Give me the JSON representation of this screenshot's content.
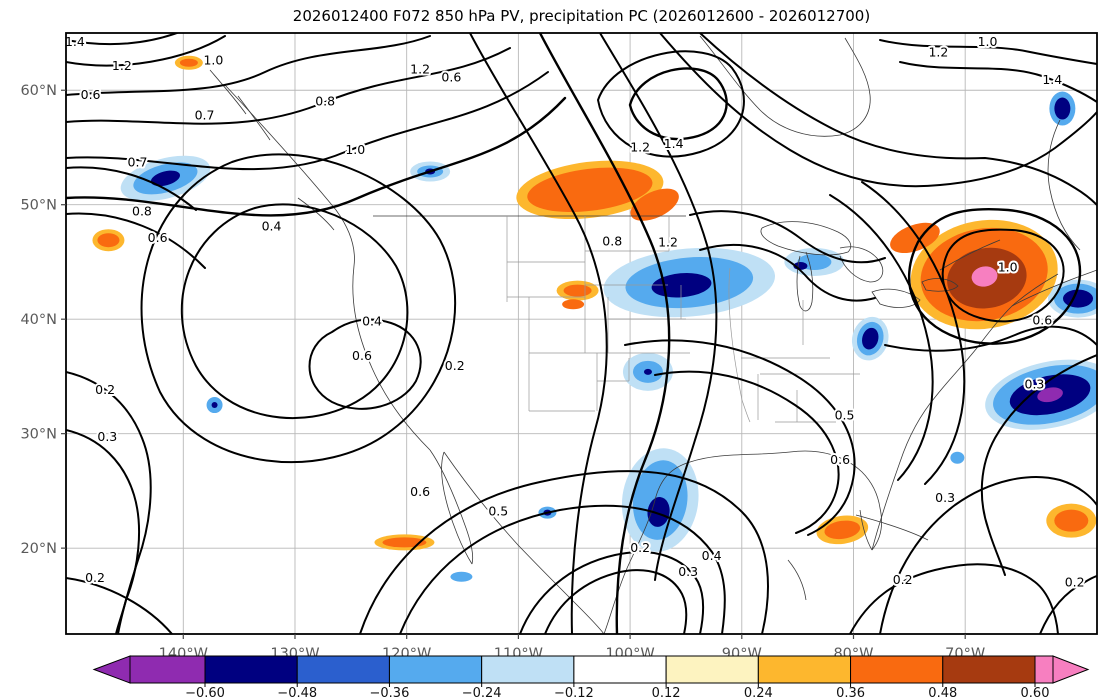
{
  "title": "2026012400 F072 850 hPa PV, precipitation PC (2026012600 - 2026012700)",
  "chart_data": {
    "type": "contour_map_with_shading",
    "title": "2026012400 F072 850 hPa PV, precipitation PC (2026012600 - 2026012700)",
    "init_time": "2026012400",
    "forecast_hour": "F072",
    "contour_variable": "850 hPa PV",
    "shaded_variable": "precipitation PC",
    "valid_period": "2026012600 - 2026012700",
    "grid": true,
    "map_extent": {
      "lon_west": 150.5,
      "lon_east": 58.2,
      "lat_south": 12.5,
      "lat_north": 65.0
    },
    "x_axis": {
      "ticks": [
        {
          "deg_w": 140,
          "label": "140°W"
        },
        {
          "deg_w": 130,
          "label": "130°W"
        },
        {
          "deg_w": 120,
          "label": "120°W"
        },
        {
          "deg_w": 110,
          "label": "110°W"
        },
        {
          "deg_w": 100,
          "label": "100°W"
        },
        {
          "deg_w": 90,
          "label": "90°W"
        },
        {
          "deg_w": 80,
          "label": "80°W"
        },
        {
          "deg_w": 70,
          "label": "70°W"
        }
      ]
    },
    "y_axis": {
      "ticks": [
        {
          "deg_n": 20,
          "label": "20°N"
        },
        {
          "deg_n": 30,
          "label": "30°N"
        },
        {
          "deg_n": 40,
          "label": "40°N"
        },
        {
          "deg_n": 50,
          "label": "50°N"
        },
        {
          "deg_n": 60,
          "label": "60°N"
        }
      ]
    },
    "contours": {
      "line_color": "#000000",
      "labeled_values": [
        0.2,
        0.3,
        0.4,
        0.5,
        0.6,
        0.7,
        0.8,
        1.0,
        1.2,
        1.4
      ],
      "labels": [
        {
          "t": "1.4",
          "lon": 149.7,
          "lat": 64.2
        },
        {
          "t": "1.2",
          "lon": 145.5,
          "lat": 62.1
        },
        {
          "t": "1.0",
          "lon": 137.3,
          "lat": 62.6
        },
        {
          "t": "0.7",
          "lon": 138.1,
          "lat": 57.8
        },
        {
          "t": "0.6",
          "lon": 148.3,
          "lat": 59.6
        },
        {
          "t": "0.8",
          "lon": 127.3,
          "lat": 59.0
        },
        {
          "t": "1.0",
          "lon": 124.6,
          "lat": 54.8
        },
        {
          "t": "1.2",
          "lon": 118.8,
          "lat": 61.8
        },
        {
          "t": "0.6",
          "lon": 116.0,
          "lat": 61.1
        },
        {
          "t": "1.2",
          "lon": 99.1,
          "lat": 55.0
        },
        {
          "t": "1.4",
          "lon": 96.1,
          "lat": 55.3
        },
        {
          "t": "0.8",
          "lon": 101.6,
          "lat": 46.8
        },
        {
          "t": "1.2",
          "lon": 96.6,
          "lat": 46.7
        },
        {
          "t": "0.7",
          "lon": 144.1,
          "lat": 53.7
        },
        {
          "t": "0.8",
          "lon": 143.7,
          "lat": 49.4
        },
        {
          "t": "0.4",
          "lon": 132.1,
          "lat": 48.1
        },
        {
          "t": "0.6",
          "lon": 142.3,
          "lat": 47.1
        },
        {
          "t": "0.2",
          "lon": 147.0,
          "lat": 33.8
        },
        {
          "t": "0.3",
          "lon": 146.8,
          "lat": 29.7
        },
        {
          "t": "0.4",
          "lon": 123.1,
          "lat": 39.8
        },
        {
          "t": "0.6",
          "lon": 124.0,
          "lat": 36.8
        },
        {
          "t": "0.2",
          "lon": 115.7,
          "lat": 35.9
        },
        {
          "t": "0.5",
          "lon": 80.8,
          "lat": 31.6
        },
        {
          "t": "0.6",
          "lon": 81.2,
          "lat": 27.7
        },
        {
          "t": "0.2",
          "lon": 99.1,
          "lat": 20.0
        },
        {
          "t": "0.3",
          "lon": 94.8,
          "lat": 17.9
        },
        {
          "t": "0.4",
          "lon": 92.7,
          "lat": 19.3
        },
        {
          "t": "0.2",
          "lon": 75.6,
          "lat": 17.2
        },
        {
          "t": "0.3",
          "lon": 71.8,
          "lat": 24.4
        },
        {
          "t": "0.6",
          "lon": 118.8,
          "lat": 24.9
        },
        {
          "t": "0.5",
          "lon": 111.8,
          "lat": 23.2
        },
        {
          "t": "1.0",
          "lon": 68.0,
          "lat": 64.2
        },
        {
          "t": "1.2",
          "lon": 72.4,
          "lat": 63.3
        },
        {
          "t": "1.4",
          "lon": 62.2,
          "lat": 60.9
        },
        {
          "t": "1.0",
          "lon": 66.2,
          "lat": 44.5
        },
        {
          "t": "0.6",
          "lon": 63.1,
          "lat": 39.9
        },
        {
          "t": "0.3",
          "lon": 63.8,
          "lat": 34.3
        },
        {
          "t": "0.2",
          "lon": 60.2,
          "lat": 17.0
        },
        {
          "t": "0.2",
          "lon": 147.9,
          "lat": 17.4
        }
      ]
    },
    "shading": {
      "colorbar": {
        "orientation": "horizontal",
        "levels": [
          -0.6,
          -0.48,
          -0.36,
          -0.24,
          -0.12,
          0.12,
          0.24,
          0.36,
          0.48,
          0.6
        ],
        "labels": [
          "−0.60",
          "−0.48",
          "−0.36",
          "−0.24",
          "−0.12",
          "0.12",
          "0.24",
          "0.36",
          "0.48",
          "0.60"
        ],
        "segment_colors": [
          "#000080",
          "#2b5fce",
          "#55aaee",
          "#bfe0f5",
          "#ffffff",
          "#fdf3c0",
          "#fdb72e",
          "#f96a10",
          "#a63a10"
        ],
        "below_color": "#8f2bb0",
        "above_color": "#f77fc0"
      },
      "regions": [
        {
          "name": "gulf-of-alaska-coast-low",
          "peak": -0.5,
          "lon": 141.6,
          "lat": 52.3,
          "rot": -15,
          "layers": [
            [
              "#bfe0f5",
              46,
              20
            ],
            [
              "#55aaee",
              33,
              14
            ],
            [
              "#000080",
              15,
              7
            ]
          ]
        },
        {
          "name": "bc-interior-low",
          "peak": -0.45,
          "lon": 117.9,
          "lat": 52.9,
          "layers": [
            [
              "#bfe0f5",
              20,
              10
            ],
            [
              "#55aaee",
              13,
              6
            ],
            [
              "#000080",
              5,
              3
            ]
          ]
        },
        {
          "name": "upper-midwest-low",
          "peak": -0.55,
          "lon": 94.7,
          "lat": 43.2,
          "rot": -5,
          "layers": [
            [
              "#bfe0f5",
              86,
              34
            ],
            [
              "#55aaee",
              64,
              25
            ],
            [
              "#000080",
              30,
              12,
              -8,
              2
            ]
          ]
        },
        {
          "name": "western-great-lakes-low",
          "peak": -0.5,
          "lon": 83.5,
          "lat": 45.0,
          "layers": [
            [
              "#bfe0f5",
              30,
              14
            ],
            [
              "#55aaee",
              17,
              8
            ],
            [
              "#000080",
              7,
              4,
              -14,
              4
            ]
          ]
        },
        {
          "name": "southern-plains-low",
          "peak": -0.5,
          "lon": 98.4,
          "lat": 35.4,
          "layers": [
            [
              "#bfe0f5",
              25,
              19
            ],
            [
              "#55aaee",
              15,
              11
            ],
            [
              "#000080",
              4,
              3
            ]
          ]
        },
        {
          "name": "mexico-gulf-coast-low",
          "peak": -0.55,
          "lon": 97.3,
          "lat": 24.2,
          "rot": 8,
          "layers": [
            [
              "#bfe0f5",
              38,
              52
            ],
            [
              "#55aaee",
              27,
              40
            ],
            [
              "#000080",
              11,
              15,
              0,
              12
            ]
          ]
        },
        {
          "name": "pacific-mexico-low",
          "peak": -0.5,
          "lon": 107.4,
          "lat": 23.1,
          "layers": [
            [
              "#55aaee",
              9,
              6
            ],
            [
              "#000080",
              4,
              3
            ]
          ]
        },
        {
          "name": "appalachians-low",
          "peak": -0.55,
          "lon": 78.5,
          "lat": 38.3,
          "rot": 15,
          "layers": [
            [
              "#bfe0f5",
              18,
              22
            ],
            [
              "#55aaee",
              13,
              17
            ],
            [
              "#000080",
              8,
              11
            ]
          ]
        },
        {
          "name": "west-atlantic-low",
          "peak": -0.65,
          "lon": 62.4,
          "lat": 33.4,
          "rot": -12,
          "layers": [
            [
              "#bfe0f5",
              66,
              33
            ],
            [
              "#55aaee",
              58,
              28
            ],
            [
              "#000080",
              41,
              19
            ],
            [
              "#8f2bb0",
              13,
              7
            ]
          ]
        },
        {
          "name": "gulf-of-maine-low",
          "peak": -0.55,
          "lon": 59.9,
          "lat": 41.8,
          "layers": [
            [
              "#bfe0f5",
              30,
              19
            ],
            [
              "#55aaee",
              24,
              15
            ],
            [
              "#000080",
              15,
              9
            ]
          ]
        },
        {
          "name": "labrador-low",
          "peak": -0.5,
          "lon": 61.3,
          "lat": 58.4,
          "layers": [
            [
              "#55aaee",
              13,
              17
            ],
            [
              "#000080",
              8,
              11
            ]
          ]
        },
        {
          "name": "subtropical-pacific-low",
          "peak": -0.45,
          "lon": 137.2,
          "lat": 32.5,
          "layers": [
            [
              "#55aaee",
              8,
              8
            ],
            [
              "#000080",
              3,
              3
            ]
          ]
        },
        {
          "name": "bahamas-low",
          "peak": -0.3,
          "lon": 70.7,
          "lat": 27.9,
          "layers": [
            [
              "#55aaee",
              7,
              6
            ]
          ]
        },
        {
          "name": "tropical-pacific-low",
          "peak": -0.3,
          "lon": 115.1,
          "lat": 17.5,
          "layers": [
            [
              "#55aaee",
              11,
              5
            ]
          ]
        },
        {
          "name": "yukon-high",
          "peak": 0.4,
          "lon": 139.5,
          "lat": 62.4,
          "layers": [
            [
              "#fdb72e",
              14,
              7
            ],
            [
              "#f96a10",
              9,
              4
            ]
          ]
        },
        {
          "name": "northeast-pacific-high",
          "peak": 0.45,
          "lon": 146.7,
          "lat": 46.9,
          "layers": [
            [
              "#fdb72e",
              16,
              11
            ],
            [
              "#f96a10",
              11,
              7
            ]
          ]
        },
        {
          "name": "canadian-prairies-high",
          "peak": 0.45,
          "lon": 103.6,
          "lat": 51.3,
          "rot": -7,
          "layers": [
            [
              "#fdb72e",
              74,
              28
            ],
            [
              "#f96a10",
              63,
              21
            ]
          ]
        },
        {
          "name": "prairies-east-arm-high",
          "peak": 0.45,
          "lon": 97.8,
          "lat": 50.0,
          "rot": -25,
          "layers": [
            [
              "#f96a10",
              26,
              13
            ]
          ]
        },
        {
          "name": "colorado-high",
          "peak": 0.4,
          "lon": 104.7,
          "lat": 42.5,
          "layers": [
            [
              "#fdb72e",
              21,
              10
            ],
            [
              "#f96a10",
              14,
              6
            ]
          ]
        },
        {
          "name": "colorado-south-high",
          "peak": 0.4,
          "lon": 105.1,
          "lat": 41.3,
          "layers": [
            [
              "#f96a10",
              11,
              5
            ]
          ]
        },
        {
          "name": "northeast-us-high",
          "peak": 0.65,
          "lon": 68.3,
          "lat": 43.9,
          "rot": -10,
          "layers": [
            [
              "#fdb72e",
              74,
              54
            ],
            [
              "#f96a10",
              64,
              46
            ],
            [
              "#a63a10",
              40,
              30,
              2,
              4
            ],
            [
              "#f77fc0",
              13,
              10,
              0,
              2
            ]
          ]
        },
        {
          "name": "ontario-arm-high",
          "peak": 0.45,
          "lon": 74.5,
          "lat": 47.1,
          "rot": -20,
          "layers": [
            [
              "#f96a10",
              26,
              13
            ]
          ]
        },
        {
          "name": "cuba-high",
          "peak": 0.45,
          "lon": 81.0,
          "lat": 21.6,
          "rot": -8,
          "layers": [
            [
              "#fdb72e",
              26,
              14
            ],
            [
              "#f96a10",
              18,
              9
            ]
          ]
        },
        {
          "name": "tropical-atlantic-high",
          "peak": 0.45,
          "lon": 60.5,
          "lat": 22.4,
          "layers": [
            [
              "#fdb72e",
              25,
              17
            ],
            [
              "#f96a10",
              17,
              11
            ]
          ]
        },
        {
          "name": "baja-south-high",
          "peak": 0.4,
          "lon": 120.2,
          "lat": 20.5,
          "layers": [
            [
              "#fdb72e",
              30,
              8
            ],
            [
              "#f96a10",
              22,
              5
            ]
          ]
        }
      ]
    }
  }
}
